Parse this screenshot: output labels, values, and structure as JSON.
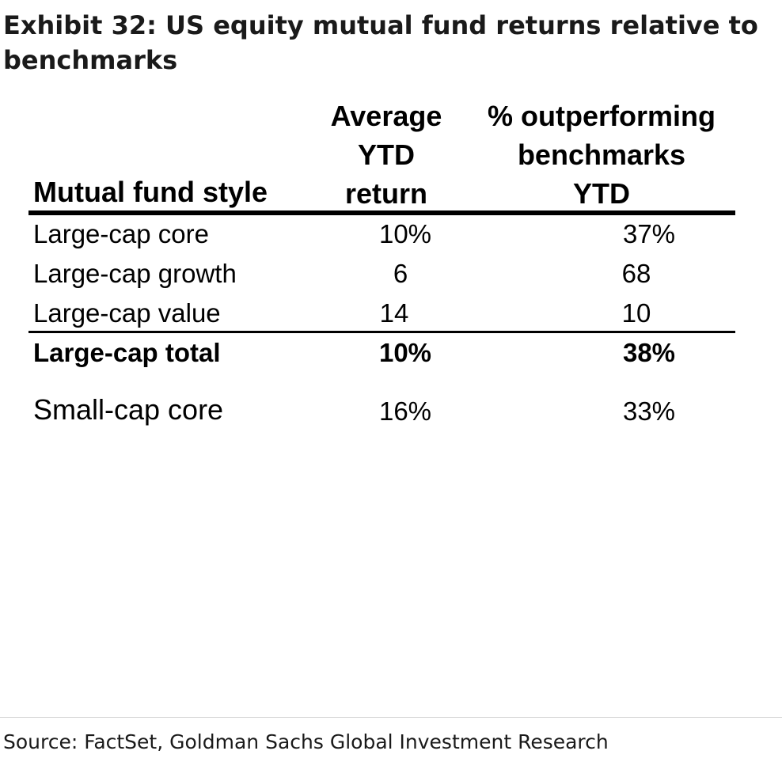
{
  "title": "Exhibit 32: US equity mutual fund returns relative to benchmarks",
  "chart_data": {
    "type": "table",
    "columns": [
      "Mutual fund style",
      "Average YTD return",
      "% outperforming benchmarks YTD"
    ],
    "header_lines": {
      "style": [
        "Mutual fund style"
      ],
      "avg_return": [
        "Average",
        "YTD",
        "return"
      ],
      "pct_outperforming": [
        "% outperforming",
        "benchmarks",
        "YTD"
      ]
    },
    "rows": [
      {
        "style": "Large-cap core",
        "avg_return": "10%",
        "pct_outperforming": "37%"
      },
      {
        "style": "Large-cap growth",
        "avg_return": "6",
        "pct_outperforming": "68"
      },
      {
        "style": "Large-cap value",
        "avg_return": "14",
        "pct_outperforming": "10"
      },
      {
        "style": "Large-cap total",
        "avg_return": "10%",
        "pct_outperforming": "38%",
        "bold": true
      },
      {
        "style": "Small-cap core",
        "avg_return": "16%",
        "pct_outperforming": "33%"
      }
    ]
  },
  "source": "Source: FactSet, Goldman Sachs Global Investment Research"
}
